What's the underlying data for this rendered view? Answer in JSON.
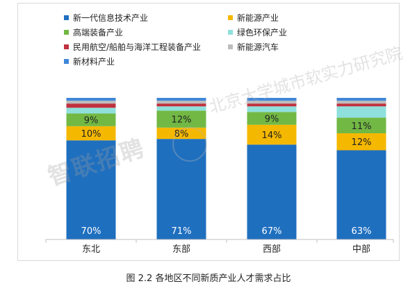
{
  "caption": "图 2.2 各地区不同新质产业人才需求占比",
  "watermark": {
    "text": "智联招聘",
    "logo": "北京大学城市软实力研究院"
  },
  "chart_data": {
    "type": "bar",
    "stacked": true,
    "categories": [
      "东北",
      "东部",
      "西部",
      "中部"
    ],
    "ylim": [
      0,
      100
    ],
    "grid": false,
    "legend_position": "top-left",
    "series": [
      {
        "name": "新一代信息技术产业",
        "color": "#1f6fbf",
        "values": [
          70,
          71,
          67,
          63
        ],
        "labels": [
          "70%",
          "71%",
          "67%",
          "63%"
        ],
        "label_color": "#ffffff"
      },
      {
        "name": "新能源产业",
        "color": "#f5b800",
        "values": [
          10,
          8,
          14,
          12
        ],
        "labels": [
          "10%",
          "8%",
          "14%",
          "12%"
        ],
        "label_color": "#222222"
      },
      {
        "name": "高端装备产业",
        "color": "#72b844",
        "values": [
          9,
          12,
          9,
          11
        ],
        "labels": [
          "9%",
          "12%",
          "9%",
          "11%"
        ],
        "label_color": "#222222"
      },
      {
        "name": "绿色环保产业",
        "color": "#8fe0dc",
        "values": [
          4,
          3,
          4,
          8
        ],
        "labels": [
          "",
          "",
          "",
          ""
        ],
        "label_color": "#222222"
      },
      {
        "name": "民用航空/船舶与海洋工程装备产业",
        "color": "#c0313f",
        "values": [
          3,
          2,
          2,
          2
        ],
        "labels": [
          "",
          "",
          "",
          ""
        ],
        "label_color": "#222222"
      },
      {
        "name": "新能源汽车",
        "color": "#bdbdbd",
        "values": [
          2,
          2,
          2,
          2
        ],
        "labels": [
          "",
          "",
          "",
          ""
        ],
        "label_color": "#222222"
      },
      {
        "name": "新材料产业",
        "color": "#3f86d9",
        "values": [
          2,
          2,
          2,
          2
        ],
        "labels": [
          "",
          "",
          "",
          ""
        ],
        "label_color": "#222222"
      }
    ],
    "legend_order": [
      "新一代信息技术产业",
      "新能源产业",
      "高端装备产业",
      "绿色环保产业",
      "民用航空/船舶与海洋工程装备产业",
      "新能源汽车",
      "新材料产业"
    ]
  }
}
